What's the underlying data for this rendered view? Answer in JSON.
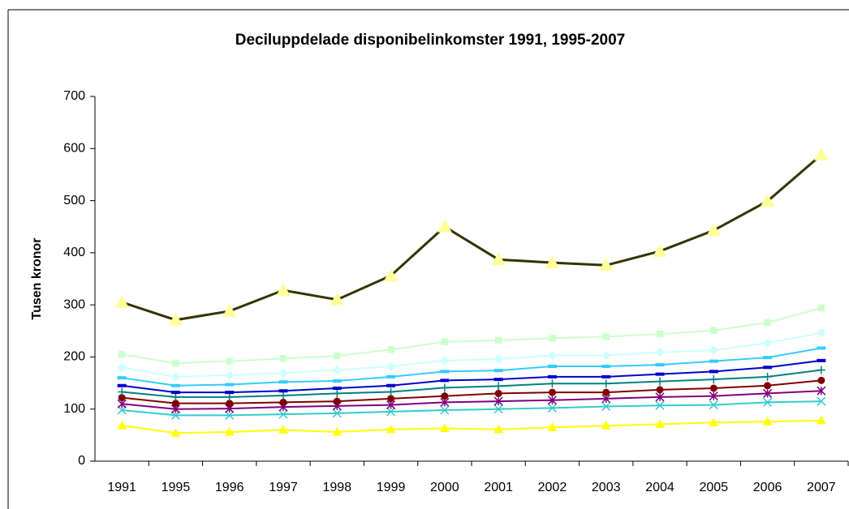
{
  "chart_data": {
    "type": "line",
    "title": "Deciluppdelade disponibelinkomster 1991, 1995-2007",
    "y_label": "Tusen kronor",
    "categories": [
      "1991",
      "1995",
      "1996",
      "1997",
      "1998",
      "1999",
      "2000",
      "2001",
      "2002",
      "2003",
      "2004",
      "2005",
      "2006",
      "2007"
    ],
    "ylim": [
      0,
      700
    ],
    "yticks": [
      0,
      100,
      200,
      300,
      400,
      500,
      600,
      700
    ],
    "grid": false,
    "series": [
      {
        "color": "#333300",
        "marker": "triangle",
        "marker_color": "#ffff99",
        "values": [
          305,
          271,
          288,
          328,
          310,
          356,
          450,
          387,
          381,
          376,
          403,
          443,
          499,
          588
        ]
      },
      {
        "color": "#ccffcc",
        "marker": "square",
        "marker_color": "#ccffcc",
        "values": [
          205,
          188,
          192,
          197,
          202,
          214,
          229,
          232,
          236,
          239,
          244,
          251,
          266,
          294
        ]
      },
      {
        "color": "#ccffff",
        "marker": "diamond",
        "marker_color": "#ccffff",
        "values": [
          180,
          162,
          165,
          169,
          175,
          182,
          193,
          196,
          203,
          203,
          209,
          213,
          227,
          246
        ]
      },
      {
        "color": "#33ccff",
        "marker": "dash",
        "marker_color": "#33ccff",
        "values": [
          160,
          145,
          147,
          152,
          154,
          162,
          172,
          174,
          182,
          182,
          185,
          192,
          199,
          217
        ]
      },
      {
        "color": "#0000cc",
        "marker": "dash",
        "marker_color": "#0000cc",
        "values": [
          145,
          132,
          132,
          135,
          140,
          145,
          155,
          157,
          162,
          162,
          167,
          172,
          180,
          193
        ]
      },
      {
        "color": "#008080",
        "marker": "plus",
        "marker_color": "#008080",
        "values": [
          133,
          123,
          123,
          126,
          130,
          133,
          141,
          144,
          149,
          149,
          153,
          157,
          162,
          175
        ]
      },
      {
        "color": "#800000",
        "marker": "circle",
        "marker_color": "#800000",
        "values": [
          122,
          111,
          111,
          113,
          115,
          120,
          125,
          130,
          132,
          132,
          137,
          140,
          145,
          155
        ]
      },
      {
        "color": "#800080",
        "marker": "star",
        "marker_color": "#800080",
        "values": [
          110,
          100,
          101,
          104,
          106,
          108,
          113,
          115,
          117,
          120,
          123,
          125,
          130,
          135
        ]
      },
      {
        "color": "#33cccc",
        "marker": "x",
        "marker_color": "#33cccc",
        "values": [
          98,
          88,
          88,
          90,
          92,
          95,
          98,
          100,
          102,
          105,
          107,
          108,
          113,
          115
        ]
      },
      {
        "color": "#ffff00",
        "marker": "triangle",
        "marker_color": "#ffff00",
        "values": [
          68,
          54,
          56,
          60,
          56,
          61,
          63,
          61,
          65,
          68,
          71,
          74,
          76,
          78
        ]
      }
    ]
  }
}
